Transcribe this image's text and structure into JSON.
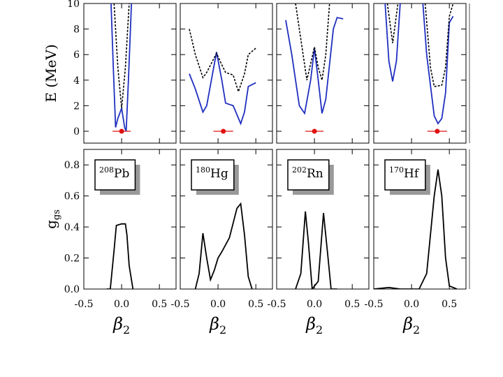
{
  "chart_data": [
    {
      "type": "line",
      "ylabel": "E (MeV)",
      "xlim": [
        -0.5,
        0.72
      ],
      "xticks": [
        -0.5,
        0,
        0.5
      ],
      "ylim": [
        -0.93,
        10
      ],
      "yticks": [
        0,
        2,
        4,
        6,
        8,
        10
      ],
      "series": [
        {
          "color": "#1f2fbf",
          "dash": false,
          "x": [
            -0.14,
            -0.11,
            -0.08,
            -0.05,
            0,
            0.04,
            0.06,
            0.09,
            0.13
          ],
          "values": [
            10,
            5,
            0.3,
            1,
            1.8,
            0.3,
            0,
            4,
            10
          ]
        },
        {
          "color": "#000000",
          "dash": true,
          "x": [
            -0.1,
            -0.05,
            0,
            0.05,
            0.1
          ],
          "values": [
            10,
            5,
            1.8,
            5,
            10
          ]
        }
      ],
      "points": [
        {
          "x": 0,
          "y": 0,
          "xerr": 0.12,
          "color": "#e01010"
        }
      ]
    },
    {
      "type": "line",
      "xlim": [
        -0.5,
        0.72
      ],
      "xticks": [
        -0.5,
        0,
        0.5
      ],
      "ylim": [
        -0.93,
        10
      ],
      "yticks": [
        0,
        2,
        4,
        6,
        8,
        10
      ],
      "series": [
        {
          "color": "#1f2fbf",
          "dash": false,
          "x": [
            -0.38,
            -0.3,
            -0.2,
            -0.15,
            -0.02,
            0.05,
            0.1,
            0.15,
            0.2,
            0.3,
            0.35,
            0.4,
            0.5
          ],
          "values": [
            4.5,
            3.3,
            1.5,
            2,
            6.2,
            4,
            2.2,
            2.1,
            2,
            0.6,
            1.5,
            3.5,
            3.8
          ]
        },
        {
          "color": "#000000",
          "dash": true,
          "x": [
            -0.38,
            -0.3,
            -0.2,
            -0.15,
            -0.02,
            0.05,
            0.1,
            0.2,
            0.27,
            0.35,
            0.4,
            0.5
          ],
          "values": [
            8,
            6,
            4.2,
            4.6,
            6.1,
            5.2,
            4.6,
            4.4,
            3.1,
            4.5,
            6,
            6.5
          ]
        }
      ],
      "points": [
        {
          "x": 0.07,
          "y": 0,
          "xerr": 0.13,
          "color": "#e01010"
        }
      ]
    },
    {
      "type": "line",
      "xlim": [
        -0.5,
        0.72
      ],
      "xticks": [
        -0.5,
        0,
        0.5
      ],
      "ylim": [
        -0.93,
        10
      ],
      "yticks": [
        0,
        2,
        4,
        6,
        8,
        10
      ],
      "series": [
        {
          "color": "#1f2fbf",
          "dash": false,
          "x": [
            -0.38,
            -0.3,
            -0.2,
            -0.13,
            -0.05,
            0,
            0.05,
            0.1,
            0.15,
            0.25,
            0.3,
            0.38
          ],
          "values": [
            8.7,
            6,
            2,
            1.4,
            4,
            6.5,
            4,
            1.4,
            2.5,
            8,
            8.9,
            8.8
          ]
        },
        {
          "color": "#000000",
          "dash": true,
          "x": [
            -0.25,
            -0.1,
            0,
            0.05,
            0.1,
            0.15,
            0.2
          ],
          "values": [
            10,
            4,
            6.6,
            5,
            4,
            6,
            10
          ]
        }
      ],
      "points": [
        {
          "x": 0,
          "y": 0,
          "xerr": 0.12,
          "color": "#e01010"
        }
      ]
    },
    {
      "type": "line",
      "xlim": [
        -0.5,
        0.72
      ],
      "xticks": [
        -0.5,
        0,
        0.5
      ],
      "ylim": [
        -0.93,
        10
      ],
      "yticks": [
        0,
        2,
        4,
        6,
        8,
        10
      ],
      "series": [
        {
          "color": "#1f2fbf",
          "dash": false,
          "x": [
            -0.35,
            -0.3,
            -0.25,
            -0.2,
            -0.15,
            0,
            0.15,
            0.2,
            0.3,
            0.35,
            0.4,
            0.45,
            0.5,
            0.55
          ],
          "values": [
            10,
            5.5,
            3.9,
            5.5,
            10,
            null,
            10,
            6,
            1.2,
            0.6,
            1,
            3,
            8.5,
            9
          ]
        },
        {
          "color": "#000000",
          "dash": true,
          "x": [
            -0.32,
            -0.25,
            -0.18,
            0,
            0.18,
            0.25,
            0.3,
            0.4,
            0.45,
            0.5,
            0.55
          ],
          "values": [
            10,
            6.9,
            10,
            null,
            10,
            5,
            3.5,
            3.6,
            5,
            9,
            10
          ]
        }
      ],
      "points": [
        {
          "x": 0.34,
          "y": 0,
          "xerr": 0.13,
          "color": "#e01010"
        }
      ]
    },
    {
      "type": "line",
      "ylabel": "g",
      "ylabel_sub": "gs",
      "xlabel": "β",
      "xlabel_sub": "2",
      "annotation": {
        "mass": "208",
        "symbol": "Pb"
      },
      "xlim": [
        -0.5,
        0.72
      ],
      "xticks": [
        -0.5,
        {
          "value": 0,
          "label": "0.0"
        },
        0.5
      ],
      "ylim": [
        0,
        0.9
      ],
      "yticks": [
        {
          "value": 0,
          "label": "0.0"
        },
        0.2,
        0.4,
        0.6,
        0.8
      ],
      "series": [
        {
          "color": "#000000",
          "dash": false,
          "x": [
            -0.2,
            -0.15,
            -0.1,
            -0.07,
            0,
            0.05,
            0.07,
            0.1,
            0.15
          ],
          "values": [
            0,
            0,
            0.25,
            0.41,
            0.42,
            0.42,
            0.35,
            0.15,
            0
          ]
        }
      ]
    },
    {
      "type": "line",
      "xlabel": "β",
      "xlabel_sub": "2",
      "annotation": {
        "mass": "180",
        "symbol": "Hg"
      },
      "xlim": [
        -0.5,
        0.72
      ],
      "xticks": [
        -0.5,
        {
          "value": 0,
          "label": "0.0"
        },
        0.5
      ],
      "ylim": [
        0,
        0.9
      ],
      "yticks": [
        0,
        0.2,
        0.4,
        0.6,
        0.8
      ],
      "series": [
        {
          "color": "#000000",
          "dash": false,
          "x": [
            -0.3,
            -0.25,
            -0.2,
            -0.15,
            -0.1,
            -0.05,
            0,
            0.05,
            0.15,
            0.25,
            0.3,
            0.35,
            0.4,
            0.45
          ],
          "values": [
            0,
            0.1,
            0.36,
            0.2,
            0.06,
            0.12,
            0.2,
            0.24,
            0.33,
            0.52,
            0.55,
            0.35,
            0.08,
            0
          ]
        }
      ]
    },
    {
      "type": "line",
      "xlabel": "β",
      "xlabel_sub": "2",
      "annotation": {
        "mass": "202",
        "symbol": "Rn"
      },
      "xlim": [
        -0.5,
        0.72
      ],
      "xticks": [
        -0.5,
        {
          "value": 0,
          "label": "0.0"
        },
        0.5
      ],
      "ylim": [
        0,
        0.9
      ],
      "yticks": [
        0,
        0.2,
        0.4,
        0.6,
        0.8
      ],
      "series": [
        {
          "color": "#000000",
          "dash": false,
          "x": [
            -0.25,
            -0.18,
            -0.12,
            -0.08,
            -0.03,
            0.05,
            0.12,
            0.18,
            0.22,
            0.3
          ],
          "values": [
            0,
            0.1,
            0.5,
            0.3,
            0,
            0.05,
            0.49,
            0.2,
            0,
            0
          ]
        }
      ]
    },
    {
      "type": "line",
      "xlabel": "β",
      "xlabel_sub": "2",
      "annotation": {
        "mass": "170",
        "symbol": "Hf"
      },
      "xlim": [
        -0.5,
        0.72
      ],
      "xticks": [
        -0.5,
        {
          "value": 0,
          "label": "0.0"
        },
        0.5
      ],
      "ylim": [
        0,
        0.9
      ],
      "yticks": [
        0,
        0.2,
        0.4,
        0.6,
        0.8
      ],
      "series": [
        {
          "color": "#000000",
          "dash": false,
          "x": [
            -0.5,
            -0.3,
            -0.15,
            0.1,
            0.2,
            0.3,
            0.35,
            0.4,
            0.45,
            0.5,
            0.6
          ],
          "values": [
            0,
            0.01,
            0,
            0,
            0.1,
            0.6,
            0.77,
            0.6,
            0.2,
            0.02,
            0
          ]
        }
      ]
    }
  ]
}
